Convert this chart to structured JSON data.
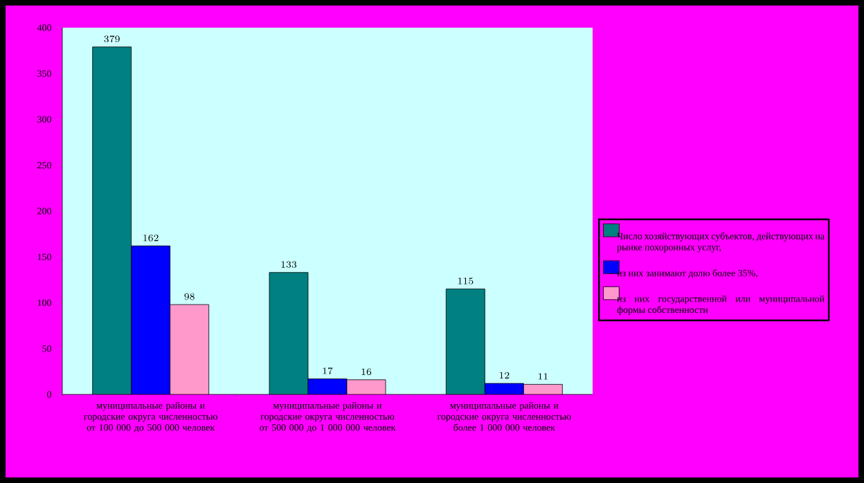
{
  "chart_data": {
    "type": "bar",
    "categories": [
      "муниципальные районы и городские округа численностью от 100 000 до 500 000 человек",
      "муниципальные районы и городские округа численностью от 500 000 до 1 000 000 человек",
      "муниципальные районы и городские округа численностью более 1 000 000 человек"
    ],
    "series": [
      {
        "name": "Число хозяйствующих субъектов, действующих на рынке похоронных услуг,",
        "color": "#008080",
        "values": [
          379,
          133,
          115
        ]
      },
      {
        "name": "из них занимают долю более 35%,",
        "color": "#0000ff",
        "values": [
          162,
          17,
          12
        ]
      },
      {
        "name": "из них государственной или муниципальной формы собственности",
        "color": "#ff99cc",
        "values": [
          98,
          16,
          11
        ]
      }
    ],
    "ylim": [
      0,
      400
    ],
    "yticks": [
      0,
      50,
      100,
      150,
      200,
      250,
      300,
      350,
      400
    ],
    "data_labels": true,
    "legend": "right",
    "grid": false
  }
}
